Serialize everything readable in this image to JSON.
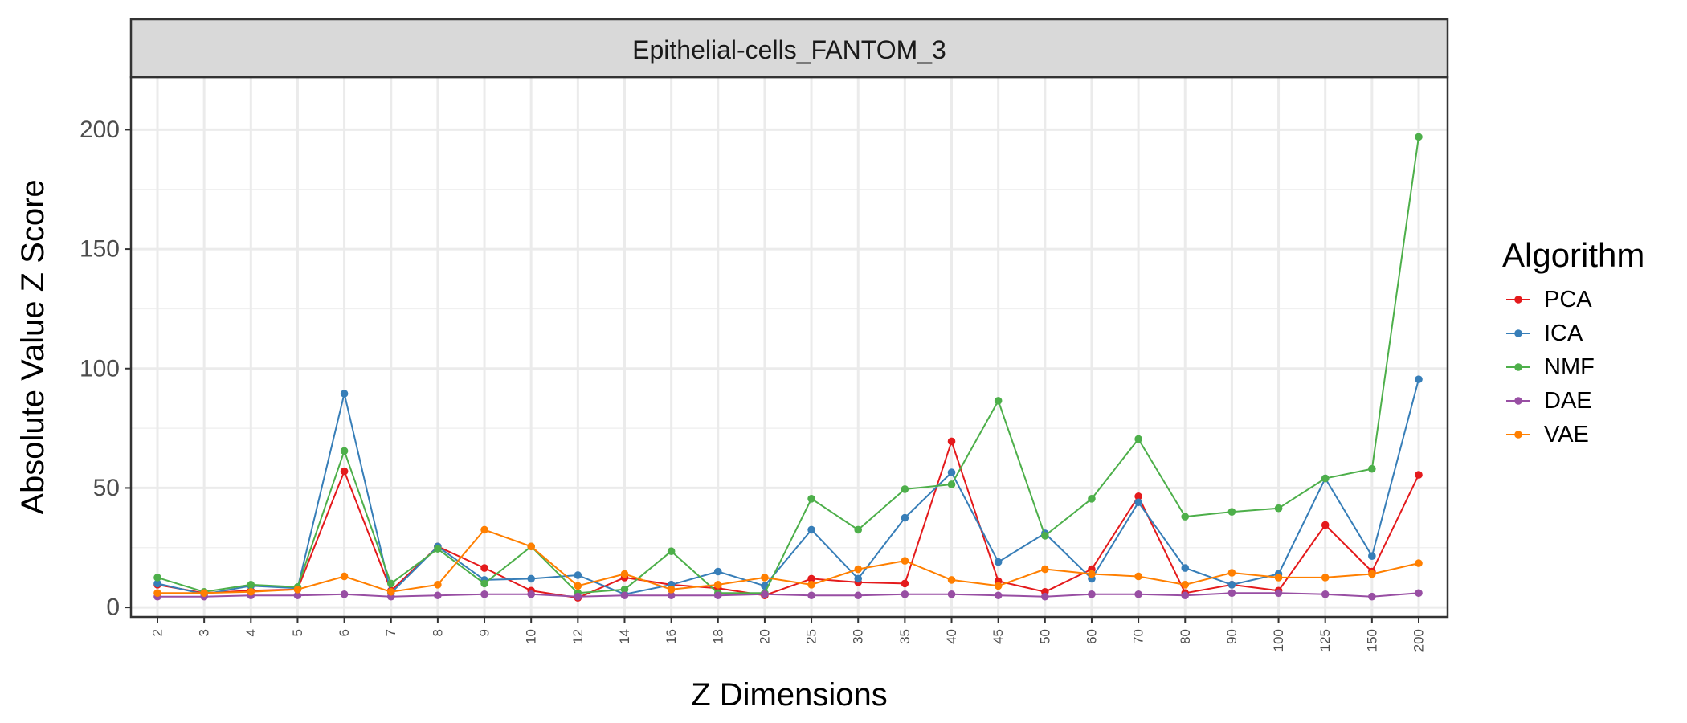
{
  "chart_data": {
    "type": "line",
    "facet_title": "Epithelial-cells_FANTOM_3",
    "xlabel": "Z Dimensions",
    "ylabel": "Absolute Value Z Score",
    "categories": [
      "2",
      "3",
      "4",
      "5",
      "6",
      "7",
      "8",
      "9",
      "10",
      "12",
      "14",
      "16",
      "18",
      "20",
      "25",
      "30",
      "35",
      "40",
      "45",
      "50",
      "60",
      "70",
      "80",
      "90",
      "100",
      "125",
      "150",
      "200"
    ],
    "y_ticks": [
      0,
      50,
      100,
      150,
      200
    ],
    "ylim": [
      -4,
      222
    ],
    "grid": true,
    "legend": {
      "title": "Algorithm",
      "position": "right"
    },
    "series": [
      {
        "name": "PCA",
        "color": "#E41A1C",
        "values": [
          9.5,
          6,
          7,
          7.5,
          57,
          7,
          25.5,
          16.5,
          7,
          4,
          12.5,
          9.5,
          8,
          5,
          12,
          10.5,
          10,
          69.5,
          11,
          6.5,
          16,
          46.5,
          6,
          9.5,
          7,
          34.5,
          15,
          55.5
        ]
      },
      {
        "name": "ICA",
        "color": "#377EB8",
        "values": [
          10,
          5.5,
          9,
          8,
          89.5,
          6,
          25.5,
          11.5,
          12,
          13.5,
          5.5,
          9.5,
          15,
          9,
          32.5,
          12,
          37.5,
          56.5,
          19,
          31,
          12,
          44,
          16.5,
          9.5,
          14,
          54,
          21.5,
          95.5
        ]
      },
      {
        "name": "NMF",
        "color": "#4DAF4A",
        "values": [
          12.5,
          6.5,
          9.5,
          8.5,
          65.5,
          10,
          24.5,
          10,
          25.5,
          6,
          7.5,
          23.5,
          6,
          6,
          45.5,
          32.5,
          49.5,
          51.5,
          86.5,
          30,
          45.5,
          70.5,
          38,
          40,
          41.5,
          54,
          58,
          197
        ]
      },
      {
        "name": "DAE",
        "color": "#984EA3",
        "values": [
          4.5,
          4.5,
          5,
          5,
          5.5,
          4.5,
          5,
          5.5,
          5.5,
          4.5,
          5,
          5,
          5,
          5.5,
          5,
          5,
          5.5,
          5.5,
          5,
          4.5,
          5.5,
          5.5,
          5,
          6,
          6,
          5.5,
          4.5,
          6
        ]
      },
      {
        "name": "VAE",
        "color": "#FF7F00",
        "values": [
          6,
          6,
          6.5,
          7.5,
          13,
          6.5,
          9.5,
          32.5,
          25.5,
          9,
          14,
          7.5,
          9.5,
          12.5,
          9.5,
          16,
          19.5,
          11.5,
          9,
          16,
          14,
          13,
          9.5,
          14.5,
          12.5,
          12.5,
          14,
          18.5
        ]
      }
    ]
  }
}
